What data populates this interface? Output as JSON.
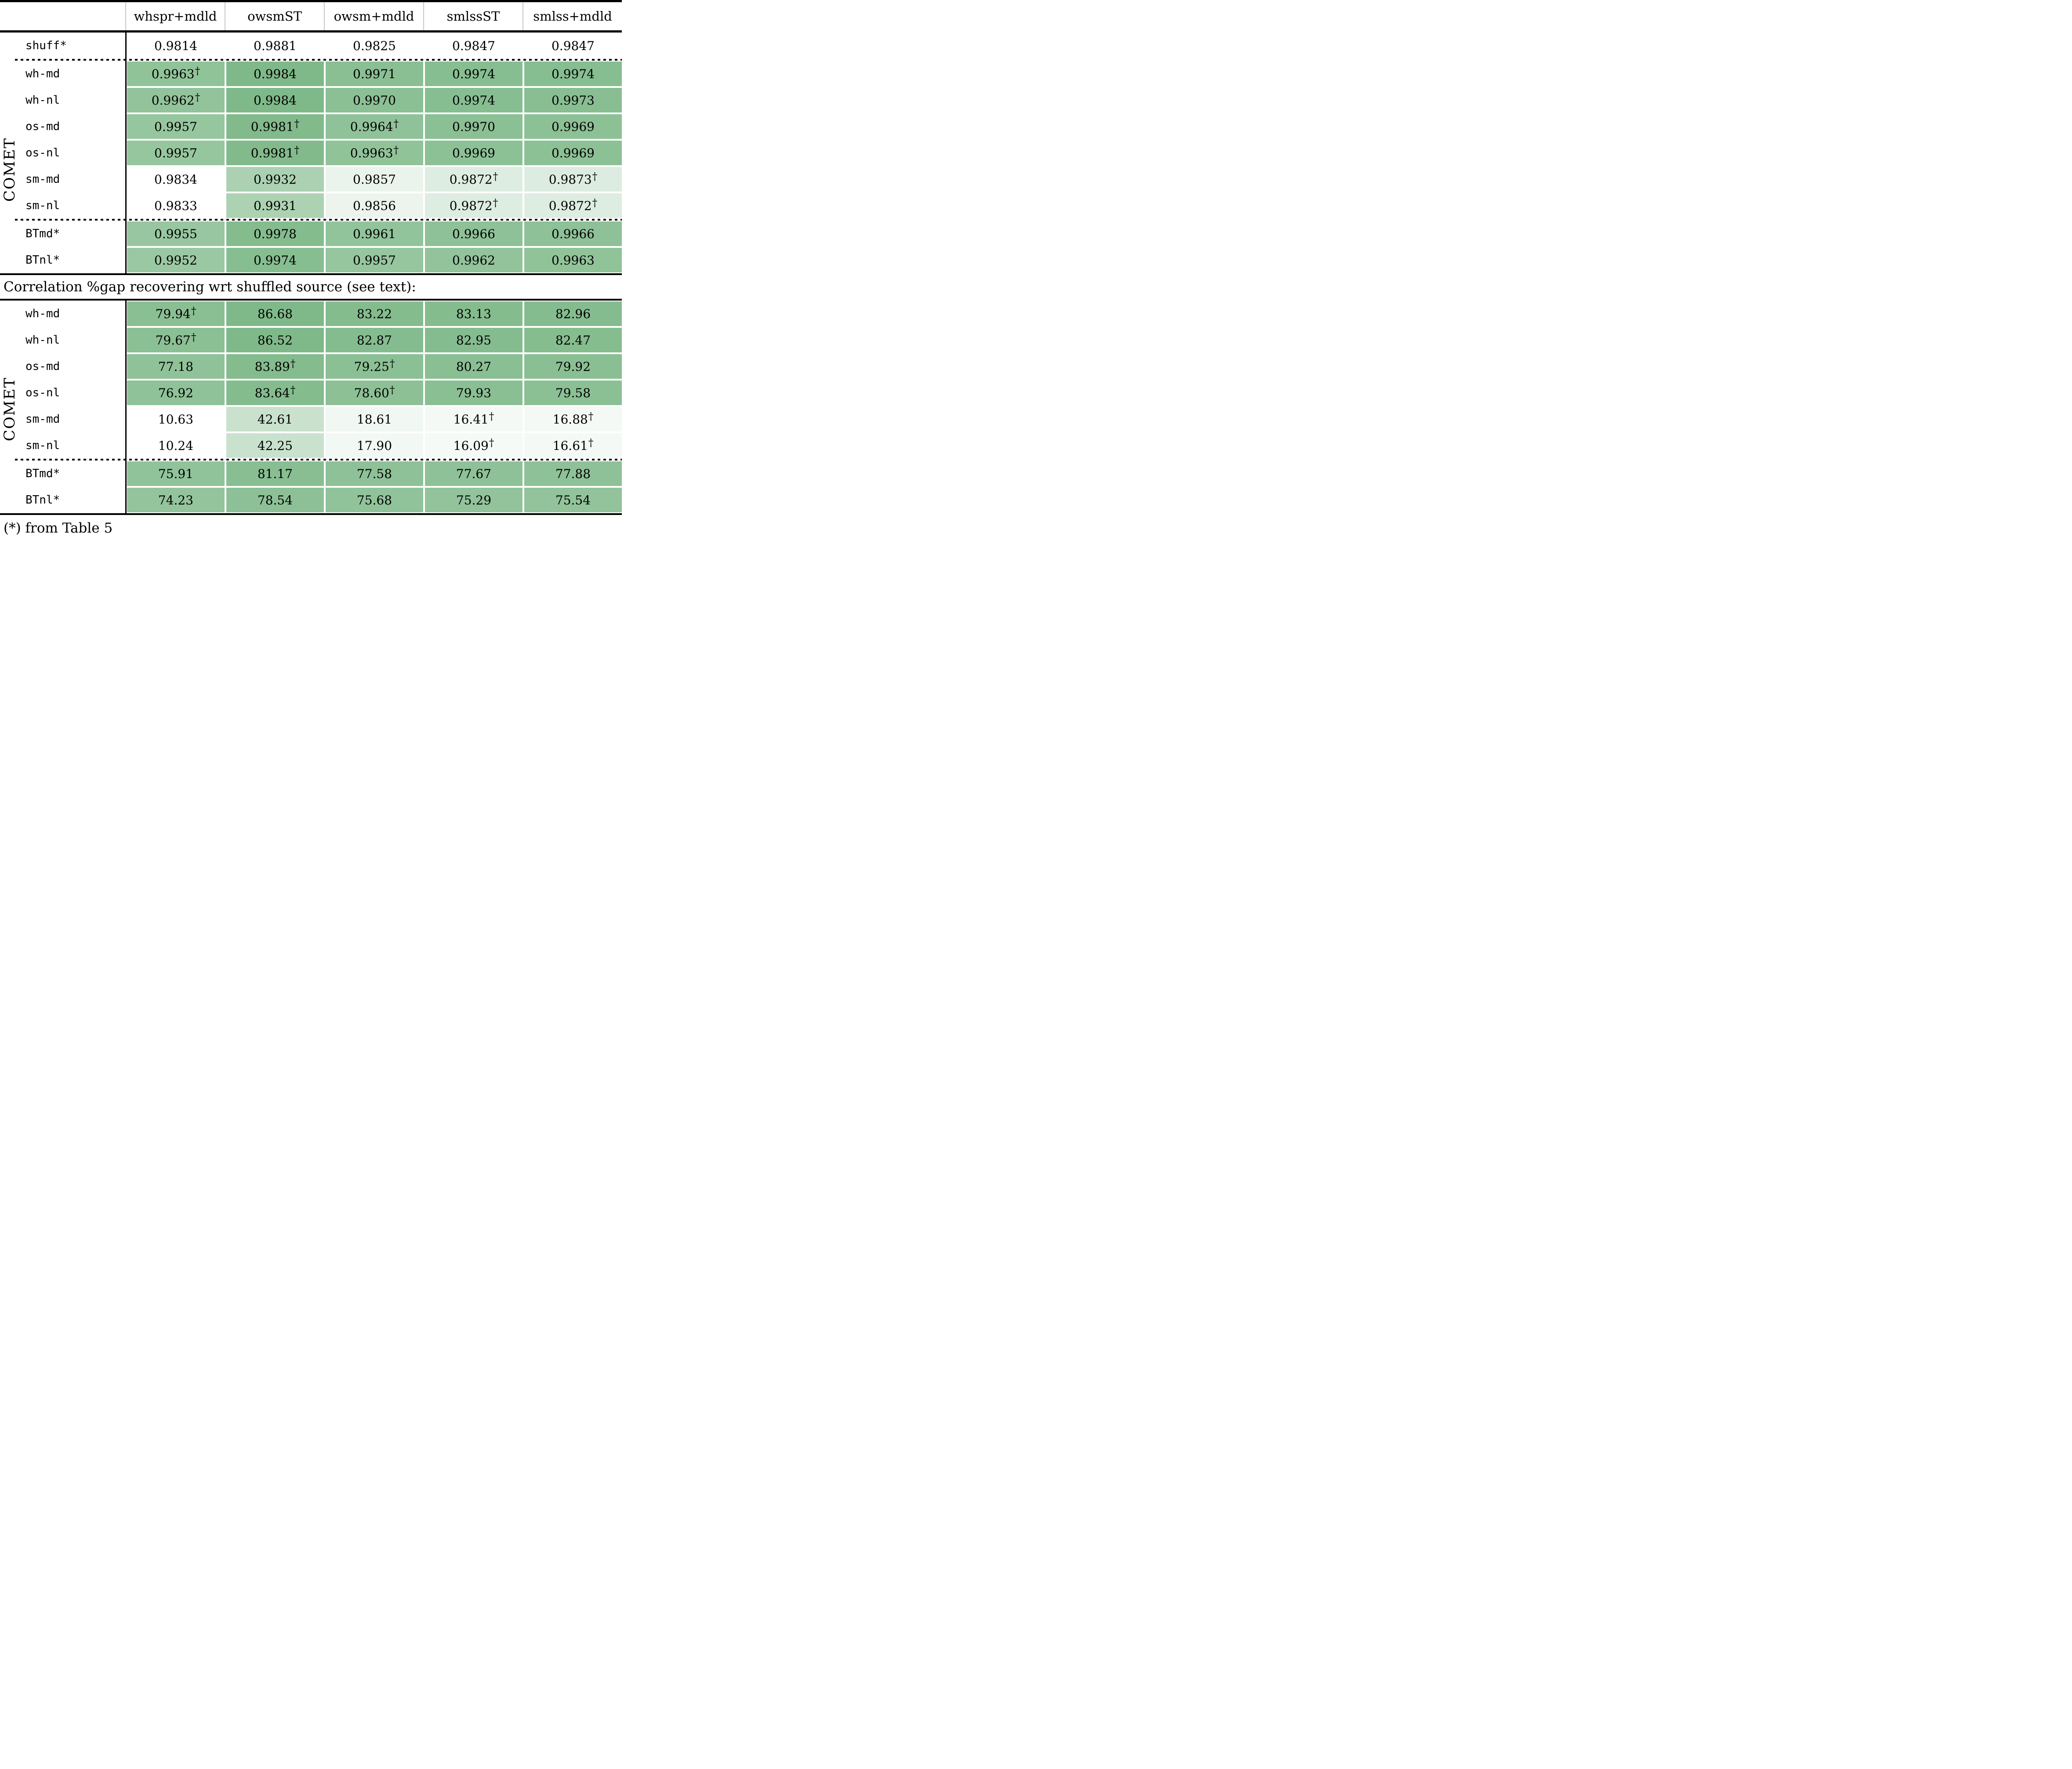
{
  "table": {
    "columns": [
      "whspr+mdld",
      "owsmST",
      "owsm+mdld",
      "smlssST",
      "smlss+mdld"
    ],
    "divider_text": "Correlation %gap recovering wrt shuffled source (see text):",
    "footnote": "(*) from Table 5",
    "colors": {
      "heat_green_max": "#7fb989",
      "rule_black": "#000000",
      "header_grid_gray": "#c8c8c8",
      "background": "#ffffff"
    },
    "sections": [
      {
        "group_label": "COMET",
        "heat_min": 0.9833,
        "heat_max": 0.9984,
        "rows": [
          {
            "label": "shuff*",
            "shaded": false,
            "sep_after": "dotted",
            "values": [
              "0.9814",
              "0.9881",
              "0.9825",
              "0.9847",
              "0.9847"
            ]
          },
          {
            "label": "wh-md",
            "shaded": true,
            "values": [
              "0.9963†",
              "0.9984",
              "0.9971",
              "0.9974",
              "0.9974"
            ]
          },
          {
            "label": "wh-nl",
            "shaded": true,
            "values": [
              "0.9962†",
              "0.9984",
              "0.9970",
              "0.9974",
              "0.9973"
            ]
          },
          {
            "label": "os-md",
            "shaded": true,
            "values": [
              "0.9957",
              "0.9981†",
              "0.9964†",
              "0.9970",
              "0.9969"
            ]
          },
          {
            "label": "os-nl",
            "shaded": true,
            "values": [
              "0.9957",
              "0.9981†",
              "0.9963†",
              "0.9969",
              "0.9969"
            ]
          },
          {
            "label": "sm-md",
            "shaded": true,
            "values": [
              "0.9834",
              "0.9932",
              "0.9857",
              "0.9872†",
              "0.9873†"
            ]
          },
          {
            "label": "sm-nl",
            "shaded": true,
            "sep_after": "dotted",
            "values": [
              "0.9833",
              "0.9931",
              "0.9856",
              "0.9872†",
              "0.9872†"
            ]
          },
          {
            "label": "BTmd*",
            "shaded": true,
            "values": [
              "0.9955",
              "0.9978",
              "0.9961",
              "0.9966",
              "0.9966"
            ]
          },
          {
            "label": "BTnl*",
            "shaded": true,
            "values": [
              "0.9952",
              "0.9974",
              "0.9957",
              "0.9962",
              "0.9963"
            ]
          }
        ]
      },
      {
        "group_label": "COMET",
        "heat_min": 10.24,
        "heat_max": 86.68,
        "rows": [
          {
            "label": "wh-md",
            "shaded": true,
            "values": [
              "79.94†",
              "86.68",
              "83.22",
              "83.13",
              "82.96"
            ]
          },
          {
            "label": "wh-nl",
            "shaded": true,
            "values": [
              "79.67†",
              "86.52",
              "82.87",
              "82.95",
              "82.47"
            ]
          },
          {
            "label": "os-md",
            "shaded": true,
            "values": [
              "77.18",
              "83.89†",
              "79.25†",
              "80.27",
              "79.92"
            ]
          },
          {
            "label": "os-nl",
            "shaded": true,
            "values": [
              "76.92",
              "83.64†",
              "78.60†",
              "79.93",
              "79.58"
            ]
          },
          {
            "label": "sm-md",
            "shaded": true,
            "values": [
              "10.63",
              "42.61",
              "18.61",
              "16.41†",
              "16.88†"
            ]
          },
          {
            "label": "sm-nl",
            "shaded": true,
            "sep_after": "dotted",
            "values": [
              "10.24",
              "42.25",
              "17.90",
              "16.09†",
              "16.61†"
            ]
          },
          {
            "label": "BTmd*",
            "shaded": true,
            "values": [
              "75.91",
              "81.17",
              "77.58",
              "77.67",
              "77.88"
            ]
          },
          {
            "label": "BTnl*",
            "shaded": true,
            "values": [
              "74.23",
              "78.54",
              "75.68",
              "75.29",
              "75.54"
            ]
          }
        ]
      }
    ]
  }
}
